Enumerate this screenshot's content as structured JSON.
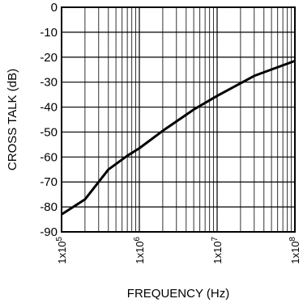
{
  "chart_data": {
    "type": "line",
    "x_scale": "log",
    "xlim": [
      100000,
      100000000
    ],
    "ylim": [
      -90,
      0
    ],
    "grid": true,
    "xlabel": "FREQUENCY (Hz)",
    "ylabel": "CROSS TALK (dB)",
    "x_tick_labels": [
      "1x10^5",
      "1x10^6",
      "1x10^7",
      "1x10^8"
    ],
    "y_tick_labels": [
      "0",
      "-10",
      "-20",
      "-30",
      "-40",
      "-50",
      "-60",
      "-70",
      "-80",
      "-90"
    ],
    "series": [
      {
        "x": [
          100000,
          200000,
          400000,
          700000,
          1000000,
          2000000,
          5000000,
          10000000,
          30000000,
          100000000
        ],
        "y": [
          -83,
          -77,
          -65,
          -59.5,
          -56.5,
          -49.5,
          -41,
          -35.5,
          -27.5,
          -21.5
        ]
      }
    ]
  }
}
